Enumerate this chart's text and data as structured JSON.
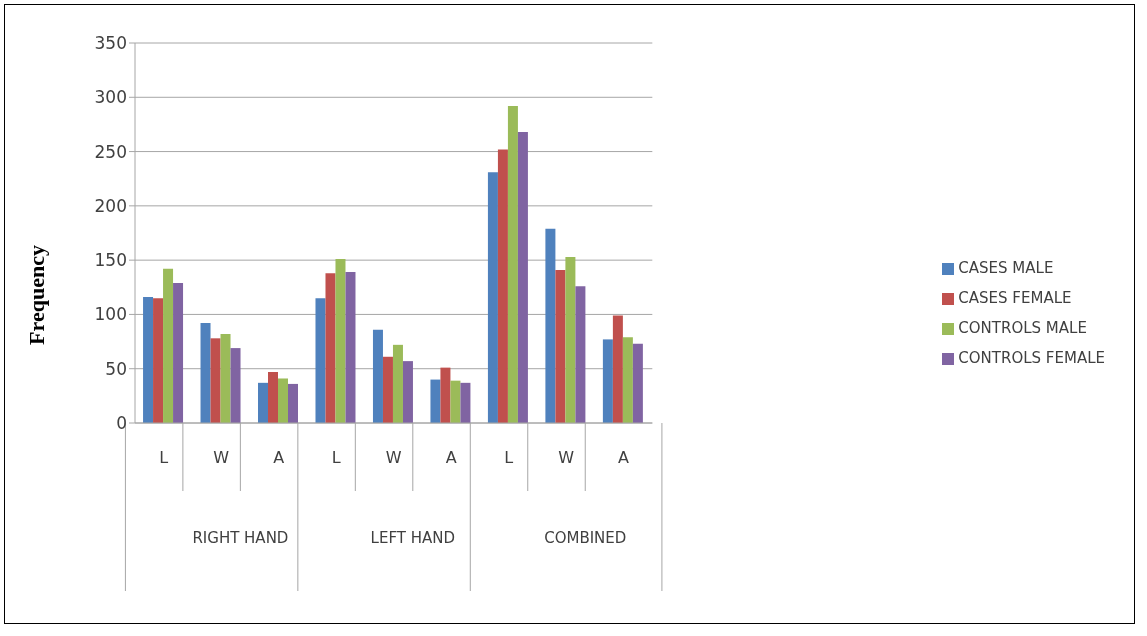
{
  "chart_data": {
    "type": "bar",
    "ylabel": "Frequency",
    "categories": [
      "L",
      "W",
      "A",
      "L",
      "W",
      "A",
      "L",
      "W",
      "A"
    ],
    "annotations": [
      "RIGHT HAND",
      "LEFT HAND",
      "COMBINED"
    ],
    "series": [
      {
        "name": "CASES MALE",
        "color": "#4f81bd",
        "values": [
          116,
          92,
          37,
          115,
          86,
          40,
          231,
          179,
          77
        ]
      },
      {
        "name": "CASES FEMALE",
        "color": "#c0504d",
        "values": [
          115,
          78,
          47,
          138,
          61,
          51,
          252,
          141,
          99
        ]
      },
      {
        "name": "CONTROLS MALE",
        "color": "#9bbb59",
        "values": [
          142,
          82,
          41,
          151,
          72,
          39,
          292,
          153,
          79
        ]
      },
      {
        "name": "CONTROLS FEMALE",
        "color": "#8064a2",
        "values": [
          129,
          69,
          36,
          139,
          57,
          37,
          268,
          126,
          73
        ]
      }
    ],
    "ylim": [
      0,
      350
    ],
    "yticks": [
      0,
      50,
      100,
      150,
      200,
      250,
      300,
      350
    ],
    "grid": "y",
    "legend": "right"
  }
}
